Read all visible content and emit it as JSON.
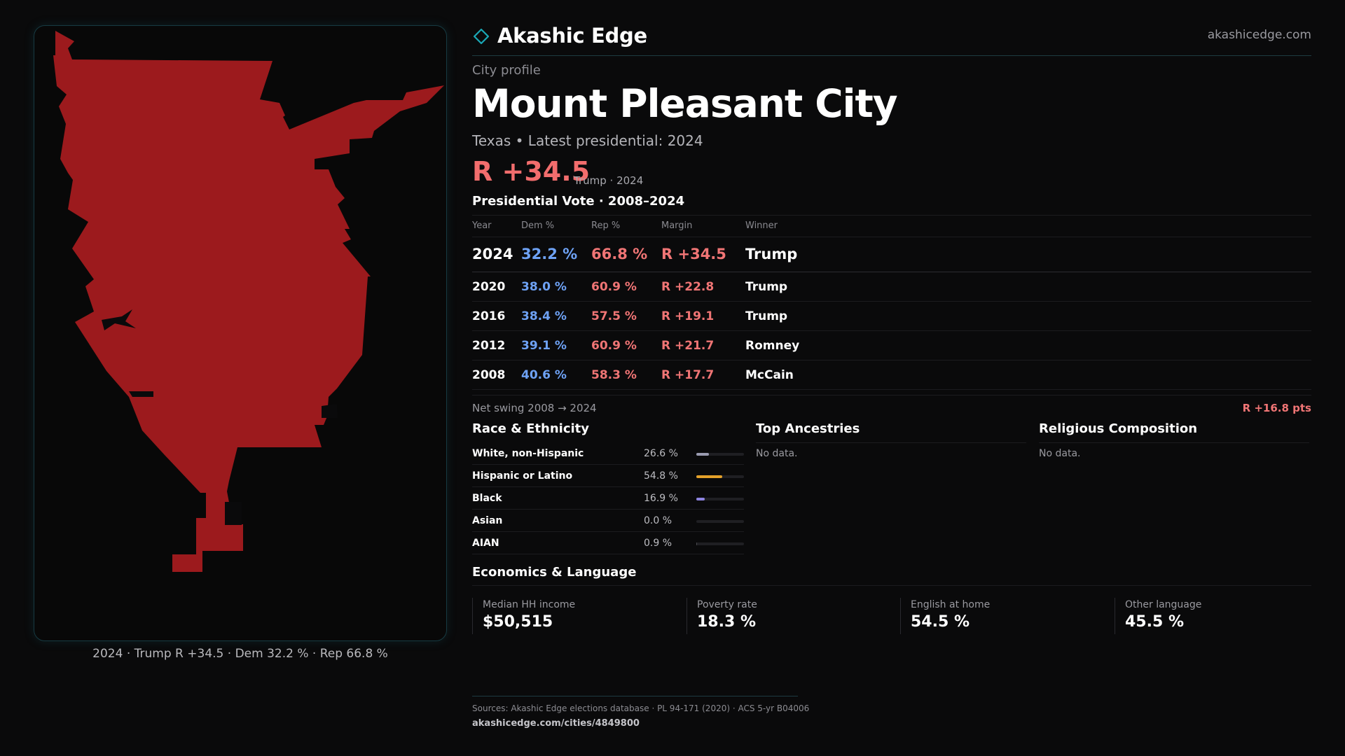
{
  "brand": {
    "name": "Akashic Edge",
    "site": "akashicedge.com"
  },
  "profile": {
    "kicker": "City profile",
    "title": "Mount Pleasant City",
    "subtitle": "Texas • Latest presidential: 2024",
    "headline_margin": "R +34.5",
    "headline_note": "Trump · 2024"
  },
  "vote_table": {
    "title": "Presidential Vote · 2008–2024",
    "headers": {
      "year": "Year",
      "dem": "Dem %",
      "rep": "Rep %",
      "margin": "Margin",
      "winner": "Winner"
    },
    "rows": [
      {
        "year": "2024",
        "dem": "32.2 %",
        "rep": "66.8 %",
        "margin": "R +34.5",
        "winner": "Trump"
      },
      {
        "year": "2020",
        "dem": "38.0 %",
        "rep": "60.9 %",
        "margin": "R +22.8",
        "winner": "Trump"
      },
      {
        "year": "2016",
        "dem": "38.4 %",
        "rep": "57.5 %",
        "margin": "R +19.1",
        "winner": "Trump"
      },
      {
        "year": "2012",
        "dem": "39.1 %",
        "rep": "60.9 %",
        "margin": "R +21.7",
        "winner": "Romney"
      },
      {
        "year": "2008",
        "dem": "40.6 %",
        "rep": "58.3 %",
        "margin": "R +17.7",
        "winner": "McCain"
      }
    ],
    "swing_label": "Net swing 2008 → 2024",
    "swing_value": "R +16.8 pts"
  },
  "race": {
    "title": "Race & Ethnicity",
    "rows": [
      {
        "label": "White, non-Hispanic",
        "pct_text": "26.6 %",
        "pct": 26.6,
        "color": "#9a9bb0"
      },
      {
        "label": "Hispanic or Latino",
        "pct_text": "54.8 %",
        "pct": 54.8,
        "color": "#e3a12a"
      },
      {
        "label": "Black",
        "pct_text": "16.9 %",
        "pct": 16.9,
        "color": "#8d84e0"
      },
      {
        "label": "Asian",
        "pct_text": "0.0 %",
        "pct": 0.0,
        "color": "#4a4a50"
      },
      {
        "label": "AIAN",
        "pct_text": "0.9 %",
        "pct": 0.9,
        "color": "#4a4a50"
      }
    ]
  },
  "ancestries": {
    "title": "Top Ancestries",
    "empty": "No data."
  },
  "religion": {
    "title": "Religious Composition",
    "empty": "No data."
  },
  "economics": {
    "title": "Economics & Language",
    "cells": [
      {
        "label": "Median HH income",
        "value": "$50,515"
      },
      {
        "label": "Poverty rate",
        "value": "18.3 %"
      },
      {
        "label": "English at home",
        "value": "54.5 %"
      },
      {
        "label": "Other language",
        "value": "45.5 %"
      }
    ]
  },
  "map": {
    "caption": "2024 · Trump  R +34.5 · Dem 32.2 % · Rep 66.8 %",
    "fill_color": "#9c1a1d"
  },
  "sources": {
    "text": "Sources: Akashic Edge elections database · PL 94-171 (2020) · ACS 5-yr B04006",
    "url": "akashicedge.com/cities/4849800"
  },
  "colors": {
    "accent": "#1aa7b5",
    "dem": "#6ea2f5",
    "rep": "#f07575"
  }
}
